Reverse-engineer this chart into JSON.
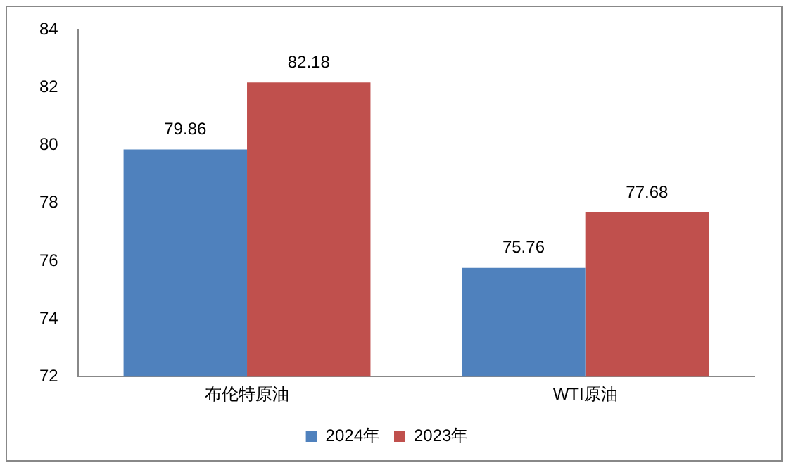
{
  "chart_data": {
    "type": "bar",
    "categories": [
      "布伦特原油",
      "WTI原油"
    ],
    "series": [
      {
        "name": "2024年",
        "color": "#4f81bd",
        "values": [
          79.86,
          75.76
        ]
      },
      {
        "name": "2023年",
        "color": "#c0504d",
        "values": [
          82.18,
          77.68
        ]
      }
    ],
    "ylim": [
      72,
      84
    ],
    "yticks": [
      72,
      74,
      76,
      78,
      80,
      82,
      84
    ],
    "grid": false,
    "legend": "bottom",
    "data_labels": true
  }
}
